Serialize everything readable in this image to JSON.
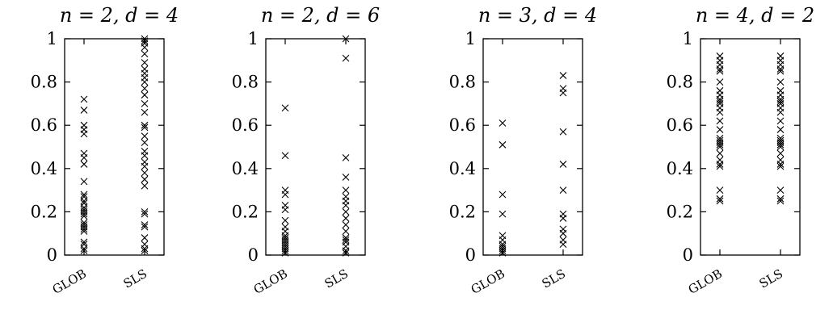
{
  "chart_data": [
    {
      "type": "scatter",
      "title": "n = 2, d = 4",
      "categories": [
        "GLOB",
        "SLS"
      ],
      "ylim": [
        0,
        1
      ],
      "yticks": [
        0,
        0.2,
        0.4,
        0.6,
        0.8,
        1
      ],
      "ytick_labels": [
        "0",
        "0.2",
        "0.4",
        "0.6",
        "0.8",
        "1"
      ],
      "grid": false,
      "marker": "x",
      "series": [
        {
          "values": [
            0.72,
            0.67,
            0.6,
            0.58,
            0.56,
            0.47,
            0.45,
            0.42,
            0.34,
            0.28,
            0.27,
            0.25,
            0.24,
            0.22,
            0.21,
            0.2,
            0.19,
            0.18,
            0.15,
            0.14,
            0.13,
            0.12,
            0.11,
            0.06,
            0.05,
            0.03,
            0.02
          ]
        },
        {
          "values": [
            1.0,
            0.99,
            0.98,
            0.96,
            0.93,
            0.89,
            0.86,
            0.84,
            0.82,
            0.8,
            0.77,
            0.74,
            0.7,
            0.66,
            0.6,
            0.59,
            0.55,
            0.52,
            0.48,
            0.46,
            0.43,
            0.41,
            0.38,
            0.35,
            0.32,
            0.2,
            0.19,
            0.14,
            0.13,
            0.08,
            0.05,
            0.03,
            0.02
          ]
        }
      ]
    },
    {
      "type": "scatter",
      "title": "n = 2, d = 6",
      "categories": [
        "GLOB",
        "SLS"
      ],
      "ylim": [
        0,
        1
      ],
      "yticks": [
        0,
        0.2,
        0.4,
        0.6,
        0.8,
        1
      ],
      "ytick_labels": [
        "0",
        "0.2",
        "0.4",
        "0.6",
        "0.8",
        "1"
      ],
      "grid": false,
      "marker": "x",
      "series": [
        {
          "values": [
            0.68,
            0.46,
            0.3,
            0.28,
            0.23,
            0.21,
            0.16,
            0.13,
            0.11,
            0.09,
            0.08,
            0.07,
            0.06,
            0.05,
            0.04,
            0.03,
            0.02,
            0.01
          ]
        },
        {
          "values": [
            1.0,
            0.91,
            0.45,
            0.36,
            0.3,
            0.27,
            0.25,
            0.23,
            0.2,
            0.17,
            0.14,
            0.11,
            0.08,
            0.07,
            0.06,
            0.04,
            0.02,
            0.01
          ]
        }
      ]
    },
    {
      "type": "scatter",
      "title": "n = 3, d = 4",
      "categories": [
        "GLOB",
        "SLS"
      ],
      "ylim": [
        0,
        1
      ],
      "yticks": [
        0,
        0.2,
        0.4,
        0.6,
        0.8,
        1
      ],
      "ytick_labels": [
        "0",
        "0.2",
        "0.4",
        "0.6",
        "0.8",
        "1"
      ],
      "grid": false,
      "marker": "x",
      "series": [
        {
          "values": [
            0.61,
            0.51,
            0.28,
            0.19,
            0.09,
            0.07,
            0.05,
            0.04,
            0.03,
            0.02,
            0.01
          ]
        },
        {
          "values": [
            0.83,
            0.77,
            0.75,
            0.57,
            0.42,
            0.3,
            0.19,
            0.17,
            0.12,
            0.1,
            0.07,
            0.05
          ]
        }
      ]
    },
    {
      "type": "scatter",
      "title": "n = 4, d = 2",
      "categories": [
        "GLOB",
        "SLS"
      ],
      "ylim": [
        0,
        1
      ],
      "yticks": [
        0,
        0.2,
        0.4,
        0.6,
        0.8,
        1
      ],
      "ytick_labels": [
        "0",
        "0.2",
        "0.4",
        "0.6",
        "0.8",
        "1"
      ],
      "grid": false,
      "marker": "x",
      "series": [
        {
          "values": [
            0.92,
            0.9,
            0.88,
            0.86,
            0.85,
            0.8,
            0.76,
            0.74,
            0.72,
            0.71,
            0.7,
            0.68,
            0.66,
            0.62,
            0.58,
            0.54,
            0.53,
            0.52,
            0.51,
            0.5,
            0.47,
            0.44,
            0.42,
            0.41,
            0.3,
            0.26,
            0.25
          ]
        },
        {
          "values": [
            0.92,
            0.9,
            0.88,
            0.86,
            0.85,
            0.8,
            0.76,
            0.74,
            0.72,
            0.71,
            0.7,
            0.68,
            0.66,
            0.62,
            0.58,
            0.54,
            0.53,
            0.52,
            0.51,
            0.5,
            0.47,
            0.44,
            0.42,
            0.41,
            0.3,
            0.26,
            0.25
          ]
        }
      ]
    }
  ]
}
